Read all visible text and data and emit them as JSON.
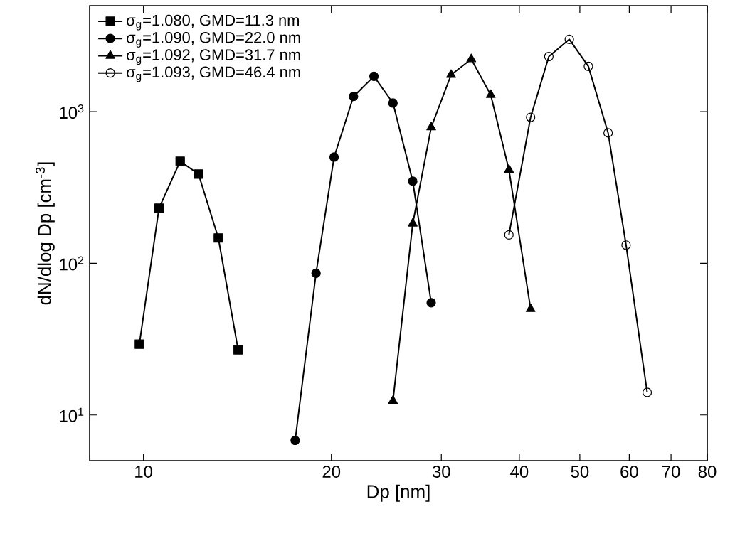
{
  "chart_data": {
    "type": "line",
    "xlabel": "Dp [nm]",
    "ylabel": "dN/dlog Dp [cm$^{-3}$]",
    "log": "xy",
    "xlim": [
      8.2,
      80
    ],
    "xticks": [
      10,
      20,
      30,
      40,
      50,
      60,
      70,
      80
    ],
    "ylim": [
      5,
      5000
    ],
    "yticks": [
      {
        "value": 10,
        "label": "10$^{1}$"
      },
      {
        "value": 100,
        "label": "10$^{2}$"
      },
      {
        "value": 1000,
        "label": "10$^{3}$"
      }
    ],
    "grid": false,
    "legend": "top left",
    "line_style": "solid",
    "series": [
      {
        "name": "σ$_{g}$=1.080, GMD=11.3 nm",
        "color": "#000000",
        "marker": "square",
        "x": [
          9.85,
          10.59,
          11.45,
          12.25,
          13.18,
          14.18
        ],
        "values": [
          29.3,
          231,
          471,
          388,
          147,
          26.9
        ]
      },
      {
        "name": "σ$_{g}$=1.090, GMD=22.0 nm",
        "color": "#000000",
        "marker": "circle",
        "x": [
          17.5,
          18.9,
          20.2,
          21.7,
          23.4,
          25.1,
          27.0,
          28.9
        ],
        "values": [
          6.8,
          86,
          502,
          1260,
          1710,
          1140,
          348,
          55
        ]
      },
      {
        "name": "σ$_{g}$=1.092, GMD=31.7 nm",
        "color": "#000000",
        "marker": "triangle",
        "x": [
          25.1,
          27.0,
          28.9,
          31.1,
          33.5,
          36.0,
          38.5,
          41.7
        ],
        "values": [
          12.4,
          183,
          789,
          1750,
          2220,
          1290,
          414,
          50
        ]
      },
      {
        "name": "σ$_{g}$=1.093, GMD=46.4 nm",
        "color": "#000000",
        "marker": "open circle",
        "x": [
          38.5,
          41.7,
          44.6,
          48.1,
          51.6,
          55.5,
          59.3,
          64.1
        ],
        "values": [
          154,
          918,
          2310,
          3000,
          1990,
          725,
          132,
          14.1
        ]
      }
    ]
  }
}
